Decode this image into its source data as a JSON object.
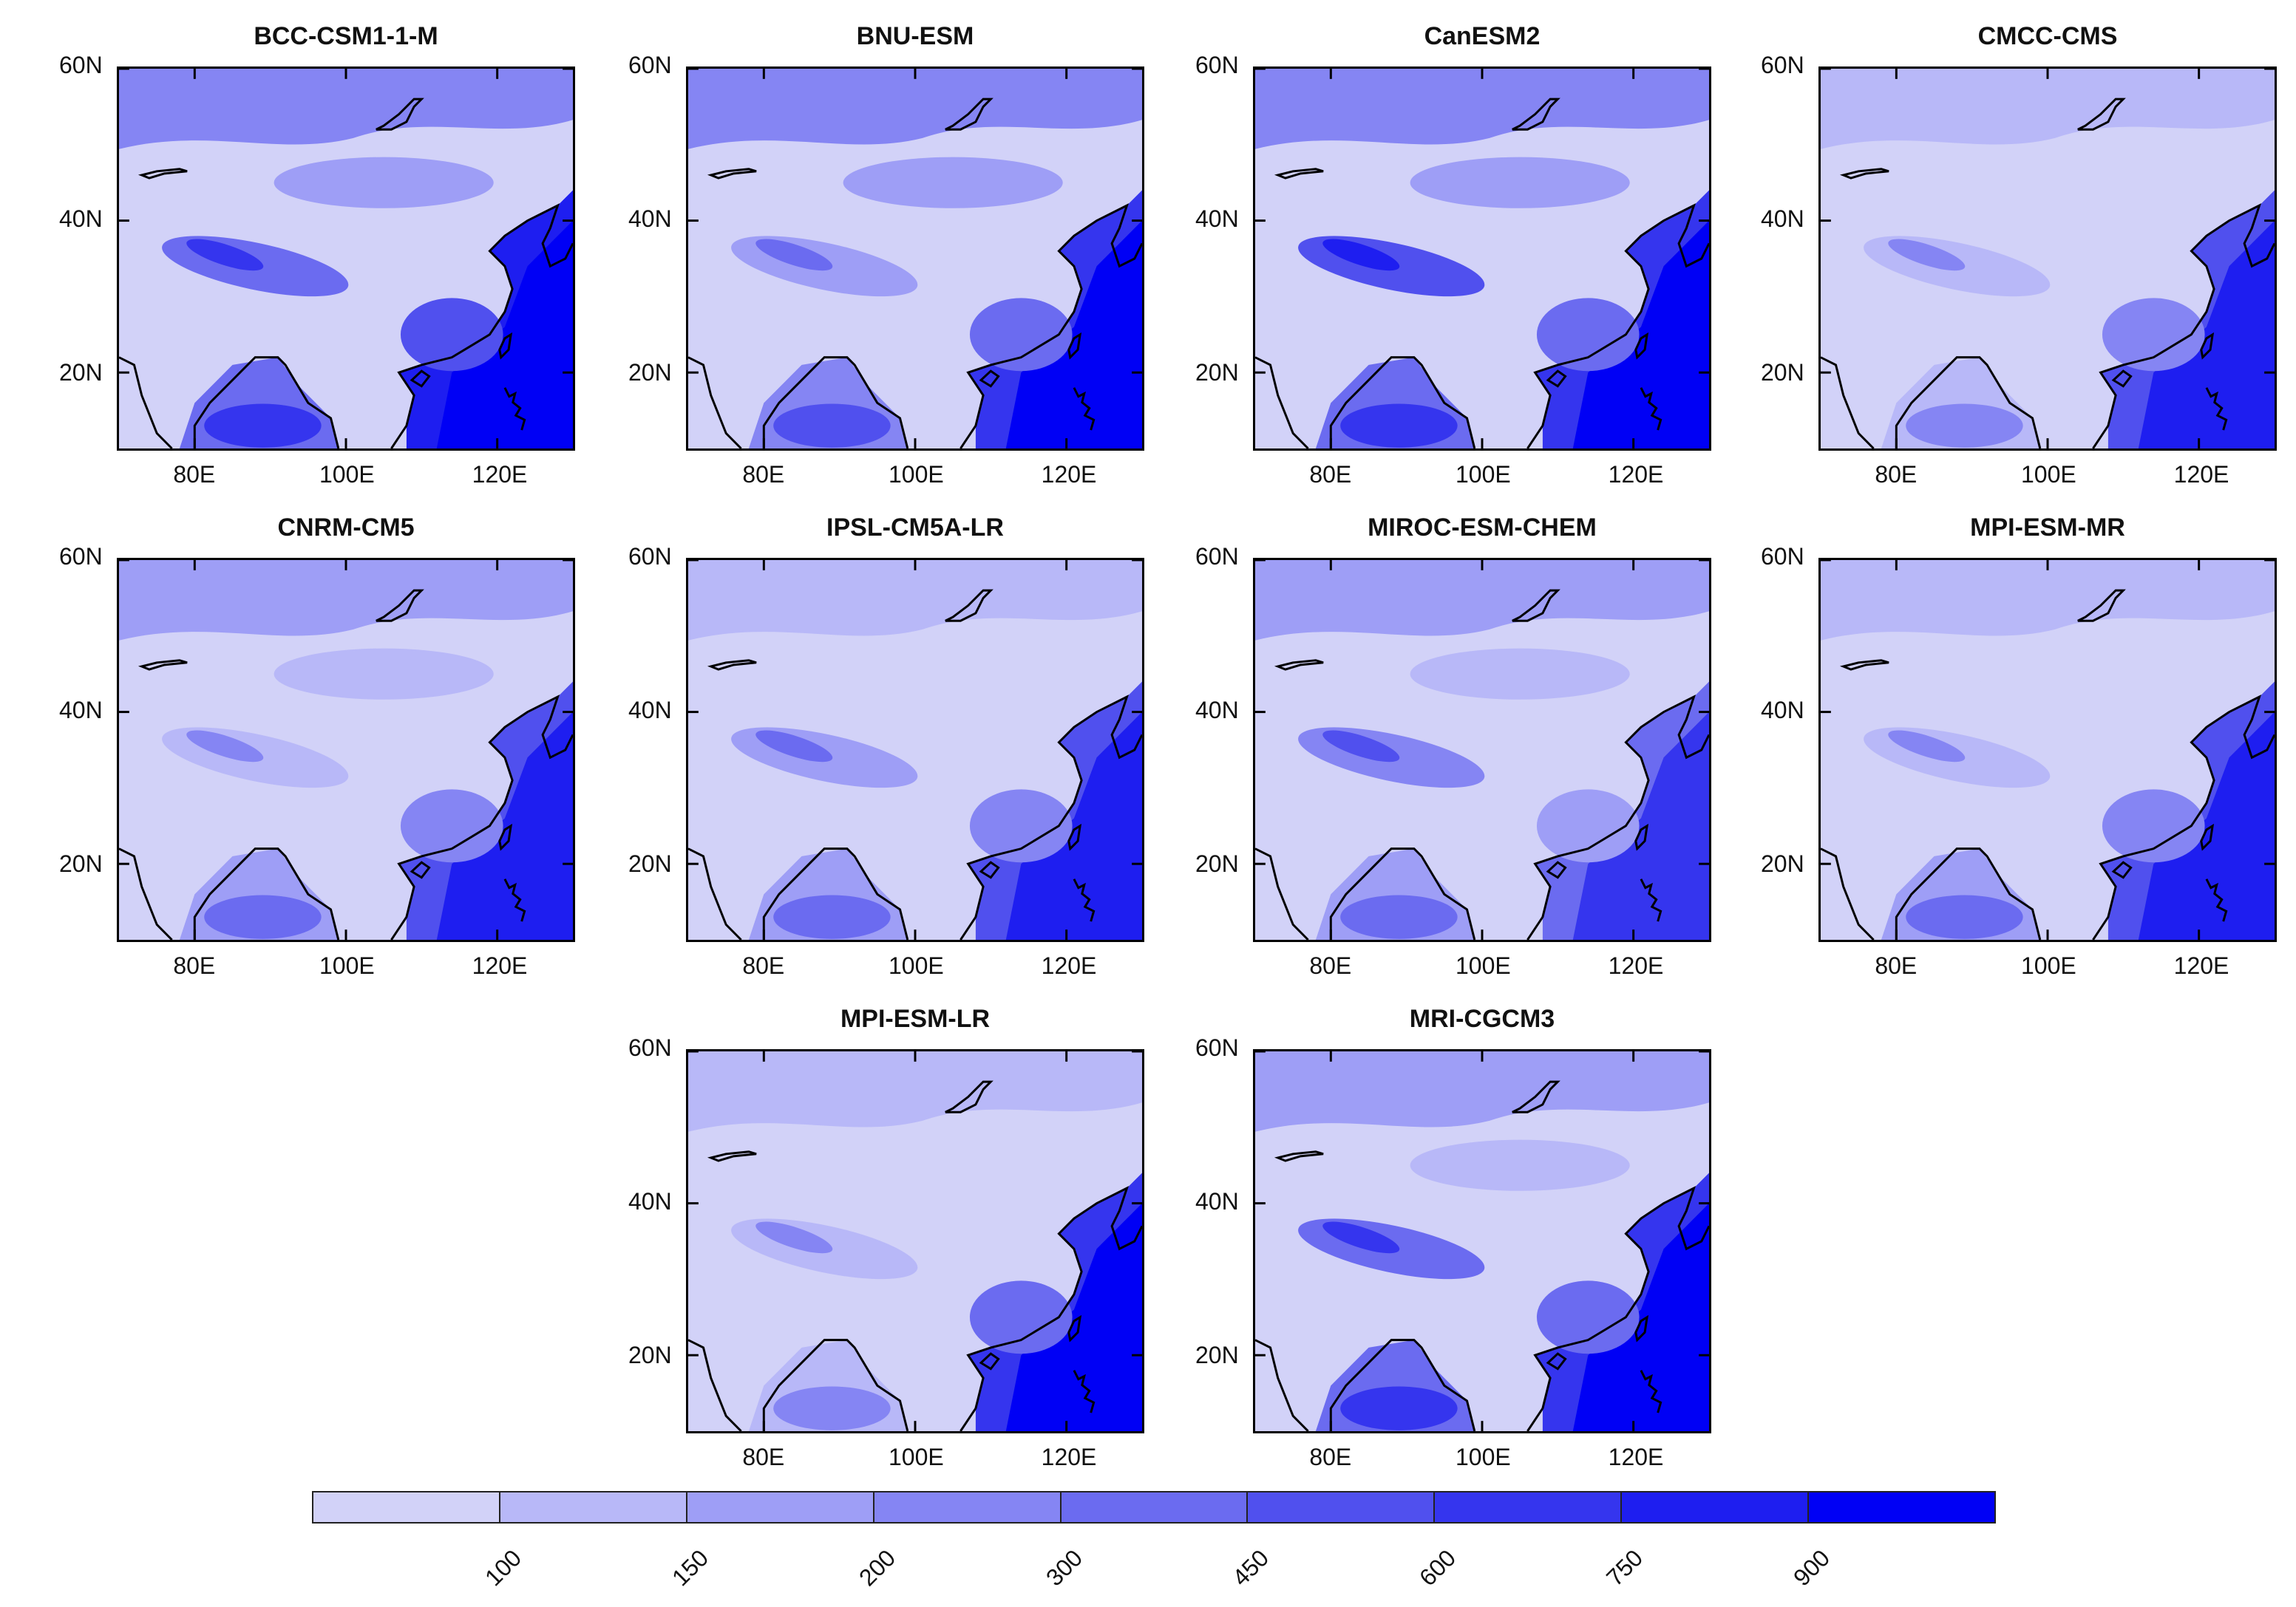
{
  "panels": [
    {
      "title": "BCC-CSM1-1-M"
    },
    {
      "title": "BNU-ESM"
    },
    {
      "title": "CanESM2"
    },
    {
      "title": "CMCC-CMS"
    },
    {
      "title": "CNRM-CM5"
    },
    {
      "title": "IPSL-CM5A-LR"
    },
    {
      "title": "MIROC-ESM-CHEM"
    },
    {
      "title": "MPI-ESM-MR"
    },
    {
      "title": "MPI-ESM-LR"
    },
    {
      "title": "MRI-CGCM3"
    }
  ],
  "axes": {
    "lat_labels": [
      "60N",
      "40N",
      "20N"
    ],
    "lon_labels": [
      "80E",
      "100E",
      "120E"
    ],
    "lon_range": [
      70,
      130
    ],
    "lat_range": [
      10,
      60
    ]
  },
  "colorbar": {
    "labels": [
      "100",
      "150",
      "200",
      "300",
      "450",
      "600",
      "750",
      "900"
    ],
    "colors": [
      "#d2d2f8",
      "#b8b8f8",
      "#9e9ef6",
      "#8585f3",
      "#6b6bf0",
      "#5050ee",
      "#3535ee",
      "#1e1ef0",
      "#0000f5"
    ]
  }
}
